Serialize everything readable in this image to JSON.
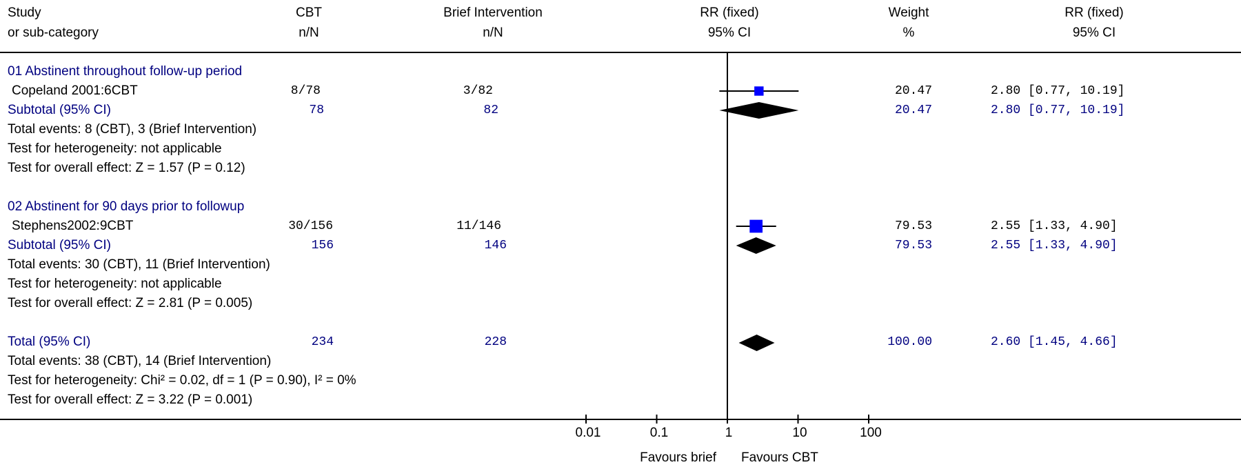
{
  "colors": {
    "text": "#000000",
    "subgroup": "#000080",
    "box": "#0000ff"
  },
  "header": {
    "study": [
      "Study",
      "or sub-category"
    ],
    "cbt": [
      "CBT",
      "n/N"
    ],
    "brief": [
      "Brief Intervention",
      "n/N"
    ],
    "rr_plot": [
      "RR (fixed)",
      "95% CI"
    ],
    "weight": [
      "Weight",
      "%"
    ],
    "rr_text": [
      "RR (fixed)",
      "95% CI"
    ]
  },
  "groups": [
    {
      "title": "01 Abstinent throughout follow-up period",
      "study": {
        "name": "Copeland 2001:6CBT",
        "cbt": "8/78",
        "brief": "3/82",
        "weight": "20.47",
        "rr": "2.80 [0.77, 10.19]"
      },
      "subtotal": {
        "label": "Subtotal (95% CI)",
        "cbt": "78",
        "brief": "82",
        "weight": "20.47",
        "rr": "2.80 [0.77, 10.19]"
      },
      "lines": [
        "Total events: 8 (CBT), 3 (Brief Intervention)",
        "Test for heterogeneity: not applicable",
        "Test for overall effect: Z = 1.57 (P = 0.12)"
      ]
    },
    {
      "title": "02 Abstinent for 90 days prior to followup",
      "study": {
        "name": "Stephens2002:9CBT",
        "cbt": "30/156",
        "brief": "11/146",
        "weight": "79.53",
        "rr": "2.55 [1.33, 4.90]"
      },
      "subtotal": {
        "label": "Subtotal (95% CI)",
        "cbt": "156",
        "brief": "146",
        "weight": "79.53",
        "rr": "2.55 [1.33, 4.90]"
      },
      "lines": [
        "Total events: 30 (CBT), 11 (Brief Intervention)",
        "Test for heterogeneity: not applicable",
        "Test for overall effect: Z = 2.81 (P = 0.005)"
      ]
    }
  ],
  "total": {
    "label": "Total (95% CI)",
    "cbt": "234",
    "brief": "228",
    "weight": "100.00",
    "rr": "2.60 [1.45, 4.66]",
    "lines": [
      "Total events: 38 (CBT), 14 (Brief Intervention)",
      "Test for heterogeneity: Chi² = 0.02, df = 1 (P = 0.90), I² = 0%",
      "Test for overall effect: Z = 3.22 (P = 0.001)"
    ]
  },
  "axis": {
    "ticks": [
      "0.01",
      "0.1",
      "1",
      "10",
      "100"
    ],
    "favours_left": "Favours brief",
    "favours_right": "Favours CBT"
  },
  "chart_data": {
    "type": "scatter",
    "scale": "log",
    "xlim": [
      0.01,
      100
    ],
    "reference_line": 1,
    "studies": [
      {
        "name": "Copeland 2001:6CBT",
        "rr": 2.8,
        "ci": [
          0.77,
          10.19
        ],
        "weight": 20.47
      },
      {
        "name": "Stephens2002:9CBT",
        "rr": 2.55,
        "ci": [
          1.33,
          4.9
        ],
        "weight": 79.53
      }
    ],
    "pooled": [
      {
        "name": "Subtotal 01",
        "rr": 2.8,
        "ci": [
          0.77,
          10.19
        ]
      },
      {
        "name": "Subtotal 02",
        "rr": 2.55,
        "ci": [
          1.33,
          4.9
        ]
      },
      {
        "name": "Total",
        "rr": 2.6,
        "ci": [
          1.45,
          4.66
        ]
      }
    ]
  }
}
